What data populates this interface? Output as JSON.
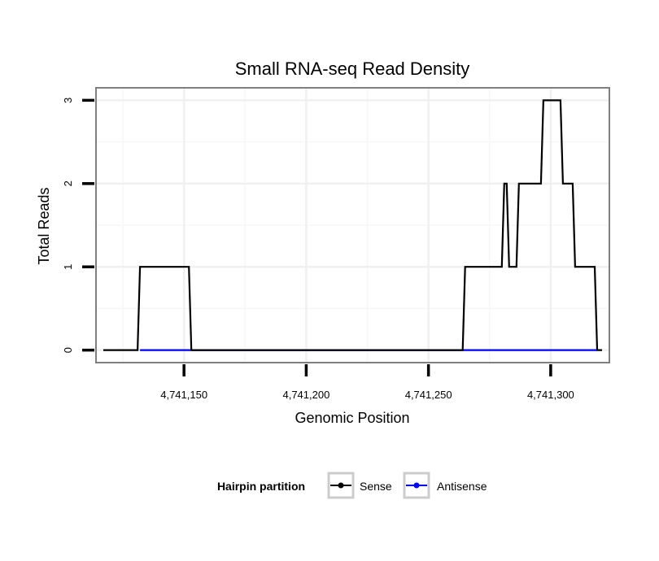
{
  "chart_data": {
    "type": "line",
    "title": "Small RNA-seq Read Density",
    "xlabel": "Genomic Position",
    "ylabel": "Total Reads",
    "xlim": [
      4741114,
      4741324
    ],
    "ylim": [
      -0.15,
      3.15
    ],
    "x_ticks": [
      4741150,
      4741200,
      4741250,
      4741300
    ],
    "x_tick_labels": [
      "4,741,150",
      "4,741,200",
      "4,741,250",
      "4,741,300"
    ],
    "y_ticks": [
      0,
      1,
      2,
      3
    ],
    "y_tick_labels": [
      "0",
      "1",
      "2",
      "3"
    ],
    "legend": {
      "title": "Hairpin partition",
      "position": "bottom",
      "entries": [
        "Sense",
        "Antisense"
      ]
    },
    "series": [
      {
        "name": "Sense",
        "color": "#000000",
        "x": [
          4741117,
          4741131,
          4741132,
          4741152,
          4741153,
          4741264,
          4741265,
          4741280,
          4741281,
          4741282,
          4741283,
          4741286,
          4741287,
          4741296,
          4741297,
          4741304,
          4741305,
          4741309,
          4741310,
          4741318,
          4741319,
          4741321
        ],
        "y": [
          0,
          0,
          1,
          1,
          0,
          0,
          1,
          1,
          2,
          2,
          1,
          1,
          2,
          2,
          3,
          3,
          2,
          2,
          1,
          1,
          0,
          0
        ]
      },
      {
        "name": "Antisense",
        "color": "#0000ff",
        "x": [
          4741132,
          4741153,
          4741265,
          4741319
        ],
        "y": [
          0,
          0,
          0,
          0
        ]
      }
    ]
  }
}
